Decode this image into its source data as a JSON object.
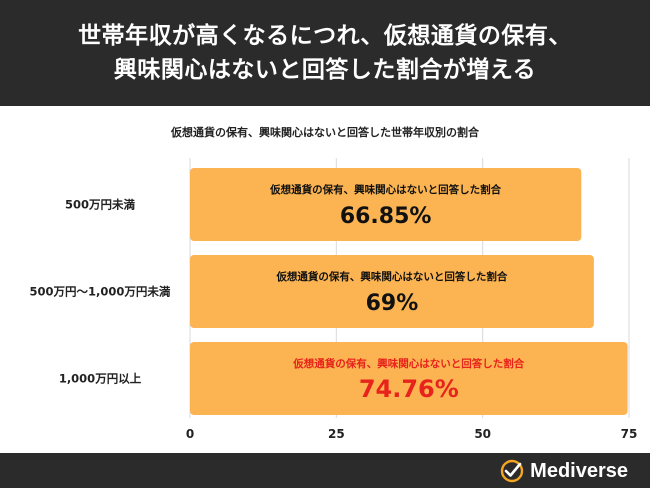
{
  "banner": {
    "line1": "世帯年収が高くなるにつれ、仮想通貨の保有、",
    "line2": "興味関心はないと回答した割合が増える"
  },
  "brand": {
    "name": "Mediverse"
  },
  "chart_data": {
    "type": "bar",
    "orientation": "horizontal",
    "title": "仮想通貨の保有、興味関心はないと回答した世帯年収別の割合",
    "categories": [
      "500万円未満",
      "500万円〜1,000万円未満",
      "1,000万円以上"
    ],
    "values": [
      66.85,
      69,
      74.76
    ],
    "value_labels": [
      "66.85%",
      "69%",
      "74.76%"
    ],
    "bar_inner_label": "仮想通貨の保有、興味関心はないと回答した割合",
    "xlim": [
      0,
      75
    ],
    "xticks": [
      "0",
      "25",
      "50",
      "75"
    ],
    "grid": true,
    "colors": {
      "bar": "#FBB451",
      "text": "#111111",
      "highlight_text": "#E8231C",
      "grid": "#d9d9d9"
    },
    "highlight_index": 2
  }
}
